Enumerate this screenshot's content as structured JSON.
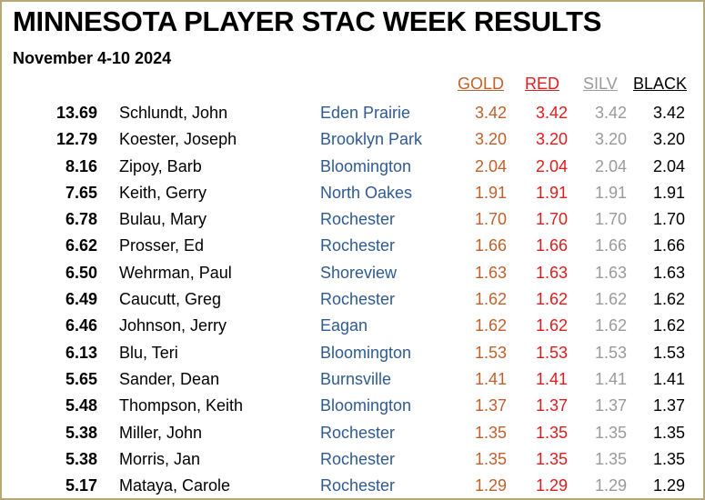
{
  "title": "MINNESOTA PLAYER STAC WEEK RESULTS",
  "subtitle": "November 4-10 2024",
  "headers": {
    "gold": "GOLD",
    "red": "RED",
    "silv": "SILV",
    "black": "BLACK"
  },
  "colors": {
    "gold": "#c0612b",
    "red": "#e01c1c",
    "silv": "#9a9a9a",
    "black": "#000000",
    "city": "#2e5a93",
    "border": "#b8a878"
  },
  "rows": [
    {
      "total": "13.69",
      "name": "Schlundt, John",
      "city": "Eden Prairie",
      "gold": "3.42",
      "red": "3.42",
      "silv": "3.42",
      "black": "3.42"
    },
    {
      "total": "12.79",
      "name": "Koester, Joseph",
      "city": "Brooklyn Park",
      "gold": "3.20",
      "red": "3.20",
      "silv": "3.20",
      "black": "3.20"
    },
    {
      "total": "8.16",
      "name": "Zipoy, Barb",
      "city": "Bloomington",
      "gold": "2.04",
      "red": "2.04",
      "silv": "2.04",
      "black": "2.04"
    },
    {
      "total": "7.65",
      "name": "Keith, Gerry",
      "city": "North Oakes",
      "gold": "1.91",
      "red": "1.91",
      "silv": "1.91",
      "black": "1.91"
    },
    {
      "total": "6.78",
      "name": "Bulau, Mary",
      "city": "Rochester",
      "gold": "1.70",
      "red": "1.70",
      "silv": "1.70",
      "black": "1.70"
    },
    {
      "total": "6.62",
      "name": "Prosser, Ed",
      "city": "Rochester",
      "gold": "1.66",
      "red": "1.66",
      "silv": "1.66",
      "black": "1.66"
    },
    {
      "total": "6.50",
      "name": "Wehrman, Paul",
      "city": "Shoreview",
      "gold": "1.63",
      "red": "1.63",
      "silv": "1.63",
      "black": "1.63"
    },
    {
      "total": "6.49",
      "name": "Caucutt, Greg",
      "city": "Rochester",
      "gold": "1.62",
      "red": "1.62",
      "silv": "1.62",
      "black": "1.62"
    },
    {
      "total": "6.46",
      "name": "Johnson, Jerry",
      "city": "Eagan",
      "gold": "1.62",
      "red": "1.62",
      "silv": "1.62",
      "black": "1.62"
    },
    {
      "total": "6.13",
      "name": "Blu, Teri",
      "city": "Bloomington",
      "gold": "1.53",
      "red": "1.53",
      "silv": "1.53",
      "black": "1.53"
    },
    {
      "total": "5.65",
      "name": "Sander, Dean",
      "city": "Burnsville",
      "gold": "1.41",
      "red": "1.41",
      "silv": "1.41",
      "black": "1.41"
    },
    {
      "total": "5.48",
      "name": "Thompson, Keith",
      "city": "Bloomington",
      "gold": "1.37",
      "red": "1.37",
      "silv": "1.37",
      "black": "1.37"
    },
    {
      "total": "5.38",
      "name": "Miller, John",
      "city": "Rochester",
      "gold": "1.35",
      "red": "1.35",
      "silv": "1.35",
      "black": "1.35"
    },
    {
      "total": "5.38",
      "name": "Morris, Jan",
      "city": "Rochester",
      "gold": "1.35",
      "red": "1.35",
      "silv": "1.35",
      "black": "1.35"
    },
    {
      "total": "5.17",
      "name": "Mataya, Carole",
      "city": "Rochester",
      "gold": "1.29",
      "red": "1.29",
      "silv": "1.29",
      "black": "1.29"
    }
  ]
}
